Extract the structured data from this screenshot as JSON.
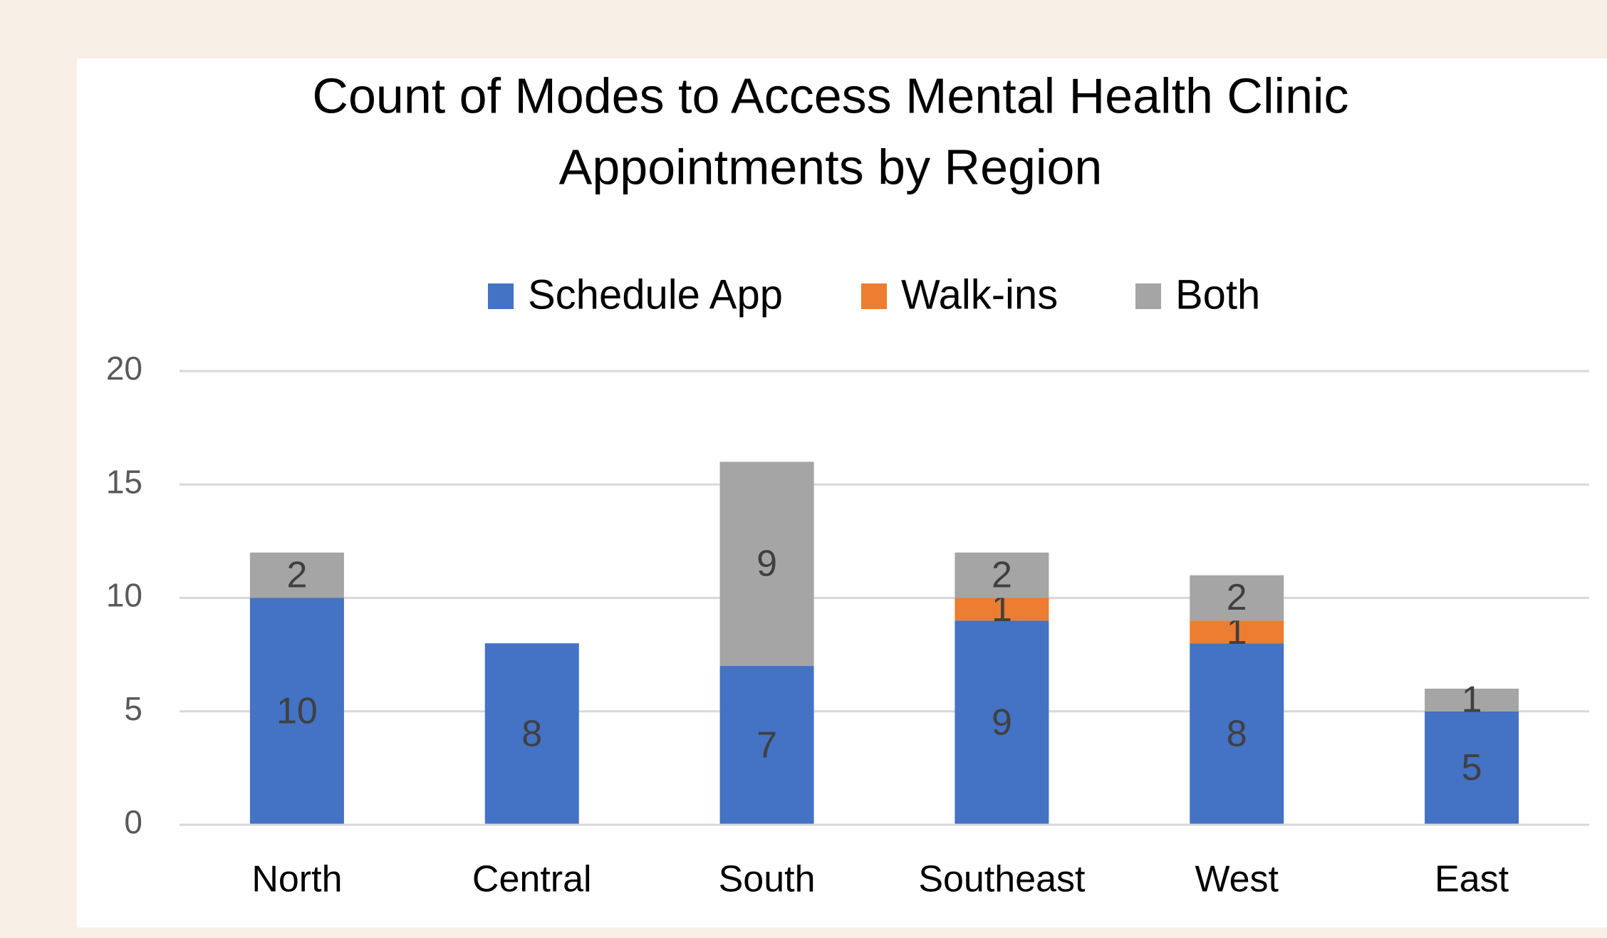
{
  "chart_data": {
    "type": "stacked_bar",
    "title": [
      "Count of Modes to Access Mental Health Clinic",
      "Appointments by Region"
    ],
    "categories": [
      "North",
      "Central",
      "South",
      "Southeast",
      "West",
      "East"
    ],
    "series": [
      {
        "name": "Schedule App",
        "color": "#4472c4",
        "values": [
          10,
          8,
          7,
          9,
          8,
          5
        ]
      },
      {
        "name": "Walk-ins",
        "color": "#ed7d31",
        "values": [
          0,
          0,
          0,
          1,
          1,
          0
        ]
      },
      {
        "name": "Both",
        "color": "#a5a5a5",
        "values": [
          2,
          0,
          9,
          2,
          2,
          1
        ]
      }
    ],
    "ylim": [
      0,
      20
    ],
    "yticks": [
      0,
      5,
      10,
      15,
      20
    ],
    "grid": true,
    "legend": "top"
  }
}
